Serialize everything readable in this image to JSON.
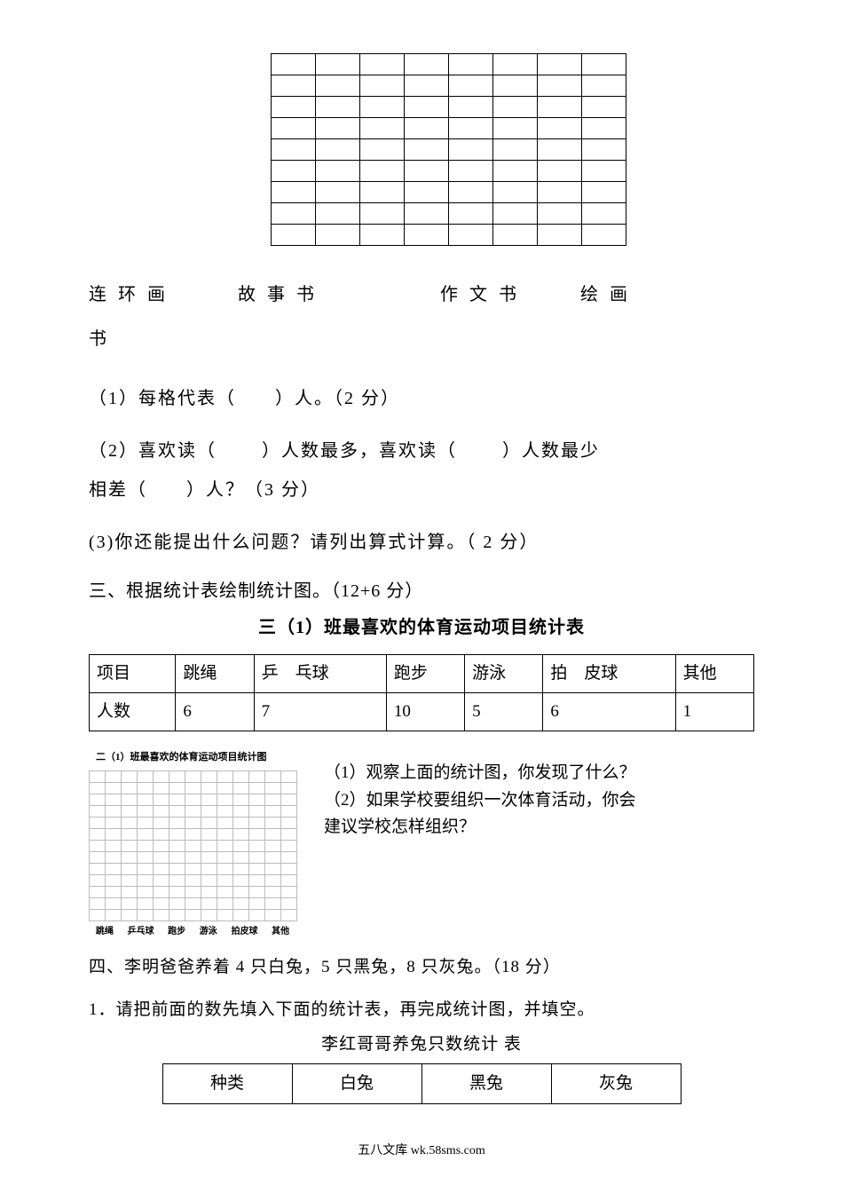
{
  "grid": {
    "rows": 9,
    "cols": 8
  },
  "book_labels": {
    "line1_a": "连  环  画",
    "line1_b": "故  事  书",
    "line1_c": "作  文  书",
    "line1_d": "绘  画",
    "line2": "书"
  },
  "q1": "（1）每格代表（　　）人。（2 分）",
  "q2": "（2）喜欢读（　　 ）人数最多，喜欢读（　 　）人数最少",
  "q2b": "相差（　　）人？（3 分）",
  "q3": " (3)你还能提出什么问题？请列出算式计算。（ 2 分）",
  "section3": "三、根据统计表绘制统计图。（12+6 分）",
  "section3_title": "三（1）班最喜欢的体育运动项目统计表",
  "sports_table": {
    "headers": [
      "项目",
      "跳绳",
      "乒　乓球",
      "跑步",
      "游泳",
      "拍　皮球",
      "其他"
    ],
    "row_label": "人数",
    "values": [
      "6",
      "7",
      "10",
      "5",
      "6",
      "1"
    ]
  },
  "chart": {
    "title": "二（1）班最喜欢的体育运动项目统计图",
    "rows": 13,
    "cols": 13,
    "labels": [
      "跳绳",
      "乒乓球",
      "跑步",
      "游泳",
      "拍皮球",
      "其他"
    ]
  },
  "chart_q1": "（1）观察上面的统计图，你发现了什么？",
  "chart_q2": "（2）如果学校要组织一次体育活动，你会",
  "chart_q2b": "建议学校怎样组织？",
  "section4_a": "四、李明爸爸养着 4 只白兔，5 只黑兔，8 只灰兔。（18 分）",
  "section4_b": "1．请把前面的数先填入下面的统计表，再完成统计图，并填空。",
  "rabbit_title": "李红哥哥养兔只数统计 表",
  "rabbit_table": {
    "headers": [
      "种类",
      "白兔",
      "黑兔",
      "灰兔"
    ]
  },
  "footer": "五八文库 wk.58sms.com"
}
